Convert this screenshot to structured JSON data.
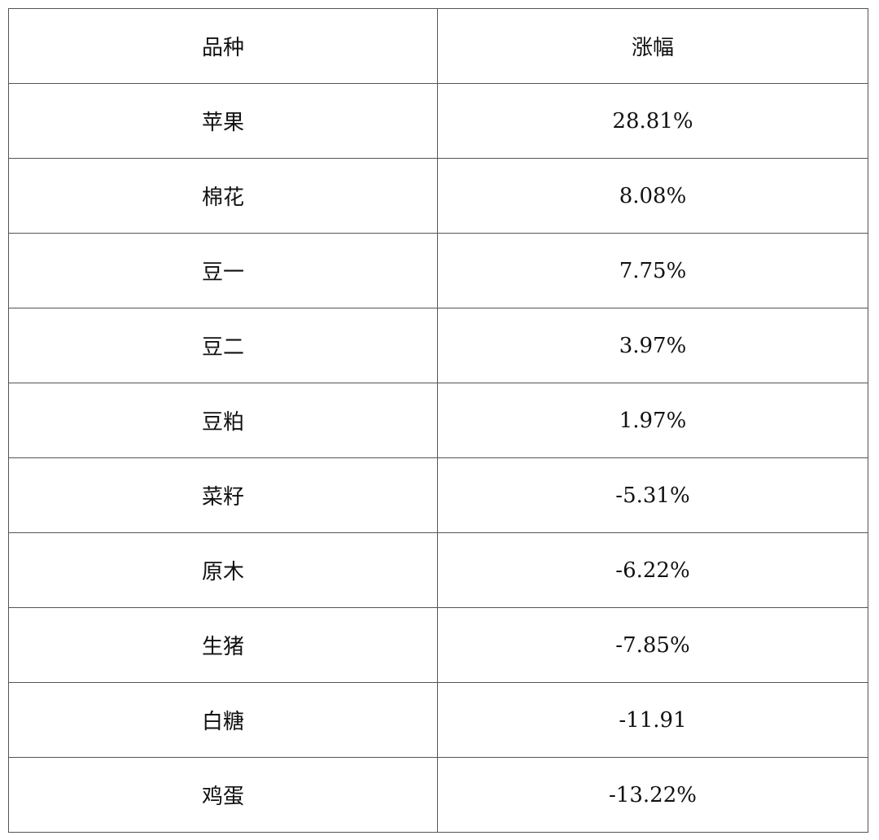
{
  "table": {
    "headers": [
      "品种",
      "涨幅"
    ],
    "rows": [
      [
        "苹果",
        "28.81%"
      ],
      [
        "棉花",
        "8.08%"
      ],
      [
        "豆一",
        "7.75%"
      ],
      [
        "豆二",
        "3.97%"
      ],
      [
        "豆粕",
        "1.97%"
      ],
      [
        "菜籽",
        "-5.31%"
      ],
      [
        "原木",
        "-6.22%"
      ],
      [
        "生猪",
        "-7.85%"
      ],
      [
        "白糖",
        "-11.91"
      ],
      [
        "鸡蛋",
        "-13.22%"
      ]
    ]
  }
}
